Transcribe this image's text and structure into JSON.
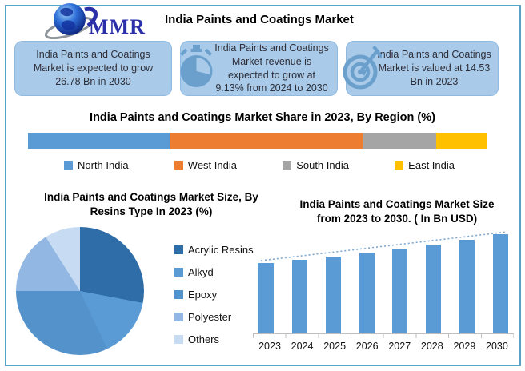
{
  "header": {
    "logo_text": "MMR",
    "title": "India Paints and Coatings Market"
  },
  "highlight_boxes": [
    {
      "icon": "none",
      "text": "India Paints and Coatings Market is expected to grow 26.78 Bn in 2030"
    },
    {
      "icon": "stopwatch-icon",
      "text": "India Paints and Coatings Market revenue is expected to grow at 9.13% from 2024 to 2030"
    },
    {
      "icon": "target-icon",
      "text": "India Paints and Coatings Market is valued at 14.53 Bn in 2023"
    }
  ],
  "colors": {
    "frame_border": "#57A4C6",
    "box_fill": "#A9CBE9",
    "box_icon": "#6B9FCC",
    "axis": "#BFBFBF",
    "trendline": "#7FA8D2"
  },
  "chart_data": [
    {
      "type": "bar",
      "variant": "horizontal-stacked",
      "title": "India Paints and Coatings Market Share in 2023, By Region (%)",
      "categories": [
        "North India",
        "West India",
        "South  India",
        "East India"
      ],
      "values": [
        31,
        42,
        16,
        11
      ],
      "unit": "%",
      "colors": [
        "#5B9BD5",
        "#ED7D31",
        "#A5A5A5",
        "#FFC000"
      ],
      "legend_position": "bottom",
      "data_labels": false
    },
    {
      "type": "pie",
      "title": "India Paints and Coatings Market Size, By Resins Type In 2023 (%)",
      "title_line1": "India Paints and Coatings Market Size, By",
      "title_line2": "Resins Type In 2023 (%)",
      "labels": [
        "Acrylic Resins",
        "Alkyd",
        "Epoxy",
        "Polyester",
        "Others"
      ],
      "values": [
        28,
        15,
        32,
        16,
        9
      ],
      "unit": "%",
      "colors": [
        "#2E6DA8",
        "#5B9BD5",
        "#5392CB",
        "#92B7E2",
        "#C7DCF2"
      ],
      "legend_position": "right",
      "start_angle_deg": 0
    },
    {
      "type": "bar",
      "title": "India Paints and Coatings Market Size from 2023 to 2030. ( In Bn  USD)",
      "title_line1": "India Paints and Coatings Market Size",
      "title_line2": "from 2023 to 2030. ( In Bn  USD)",
      "categories": [
        "2023",
        "2024",
        "2025",
        "2026",
        "2027",
        "2028",
        "2029",
        "2030"
      ],
      "values": [
        14.53,
        15.86,
        17.3,
        18.88,
        20.61,
        22.49,
        24.53,
        26.78
      ],
      "xlabel": "",
      "ylabel": "Bn USD",
      "bar_color": "#5B9BD5",
      "trendline": true,
      "y_axis_labels": false,
      "baseline": "truncated (bars not drawn from zero)",
      "grid": false
    }
  ]
}
